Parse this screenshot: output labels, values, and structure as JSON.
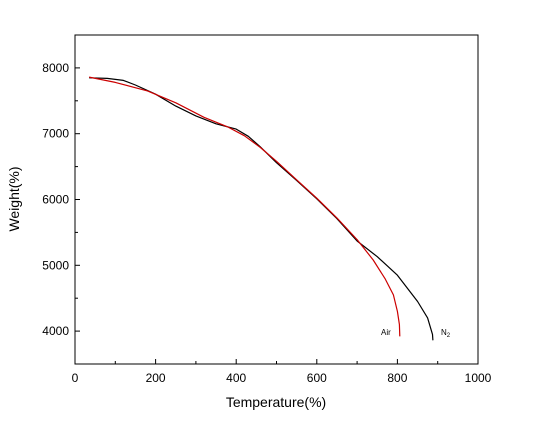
{
  "chart_data": {
    "type": "line",
    "title": "",
    "xlabel": "Temperature(%)",
    "ylabel": "Weight(%)",
    "xlim": [
      0,
      1000
    ],
    "ylim": [
      3500,
      8500
    ],
    "xticks": [
      0,
      200,
      400,
      600,
      800,
      1000
    ],
    "yticks": [
      4000,
      5000,
      6000,
      7000,
      8000
    ],
    "grid": false,
    "legend": "none",
    "series": [
      {
        "name": "N₂",
        "color": "#000000",
        "label_text": "N",
        "label_subscript": "2",
        "x": [
          35,
          80,
          120,
          150,
          200,
          250,
          300,
          350,
          400,
          430,
          460,
          500,
          550,
          600,
          650,
          700,
          750,
          800,
          850,
          875,
          887,
          888
        ],
        "y": [
          7850,
          7840,
          7810,
          7740,
          7600,
          7420,
          7270,
          7150,
          7070,
          6960,
          6800,
          6560,
          6290,
          6010,
          5710,
          5370,
          5130,
          4850,
          4450,
          4200,
          3950,
          3860
        ]
      },
      {
        "name": "Air",
        "color": "#cc0000",
        "label_text": "Air",
        "label_subscript": "",
        "x": [
          35,
          100,
          180,
          250,
          320,
          380,
          420,
          460,
          500,
          550,
          600,
          650,
          700,
          740,
          770,
          790,
          800,
          805,
          806
        ],
        "y": [
          7860,
          7780,
          7650,
          7470,
          7250,
          7100,
          6970,
          6790,
          6580,
          6300,
          6020,
          5720,
          5390,
          5080,
          4790,
          4550,
          4300,
          4100,
          3920
        ]
      }
    ]
  }
}
